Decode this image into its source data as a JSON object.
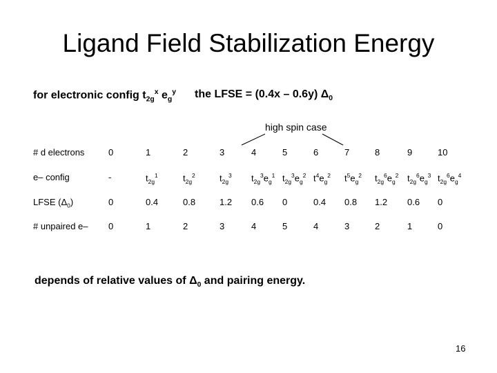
{
  "title": "Ligand Field Stabilization Energy",
  "subtitle": {
    "prefix": "for electronic config t",
    "t_sub": "2g",
    "t_sup": "x",
    "e": " e",
    "e_sub": "g",
    "e_sup": "y",
    "formula": "the LFSE  =  (0.4x – 0.6y) Δ",
    "formula_sub": "0"
  },
  "spin_case": "high spin case",
  "table": {
    "headers": [
      "# d electrons",
      "e– config",
      "LFSE (Δ",
      "# unpaired e–"
    ],
    "lfse_sub": "0",
    "lfse_close": ")",
    "d_electrons": [
      "0",
      "1",
      "2",
      "3",
      "4",
      "5",
      "6",
      "7",
      "8",
      "9",
      "10"
    ],
    "config": [
      "-",
      "t2g1",
      "t2g2",
      "t2g3",
      "t2g3eg1",
      "t2g3eg2",
      "t4eg2",
      "t5eg2",
      "t2g6eg2",
      "t2g6eg3",
      "t2g6eg4"
    ],
    "lfse": [
      "0",
      "0.4",
      "0.8",
      "1.2",
      "0.6",
      "0",
      "0.4",
      "0.8",
      "1.2",
      "0.6",
      "0"
    ],
    "unpaired": [
      "0",
      "1",
      "2",
      "3",
      "4",
      "5",
      "4",
      "3",
      "2",
      "1",
      "0"
    ]
  },
  "note": {
    "before": "depends of relative values of Δ",
    "sub": "0",
    "after": " and pairing energy."
  },
  "page_number": "16"
}
